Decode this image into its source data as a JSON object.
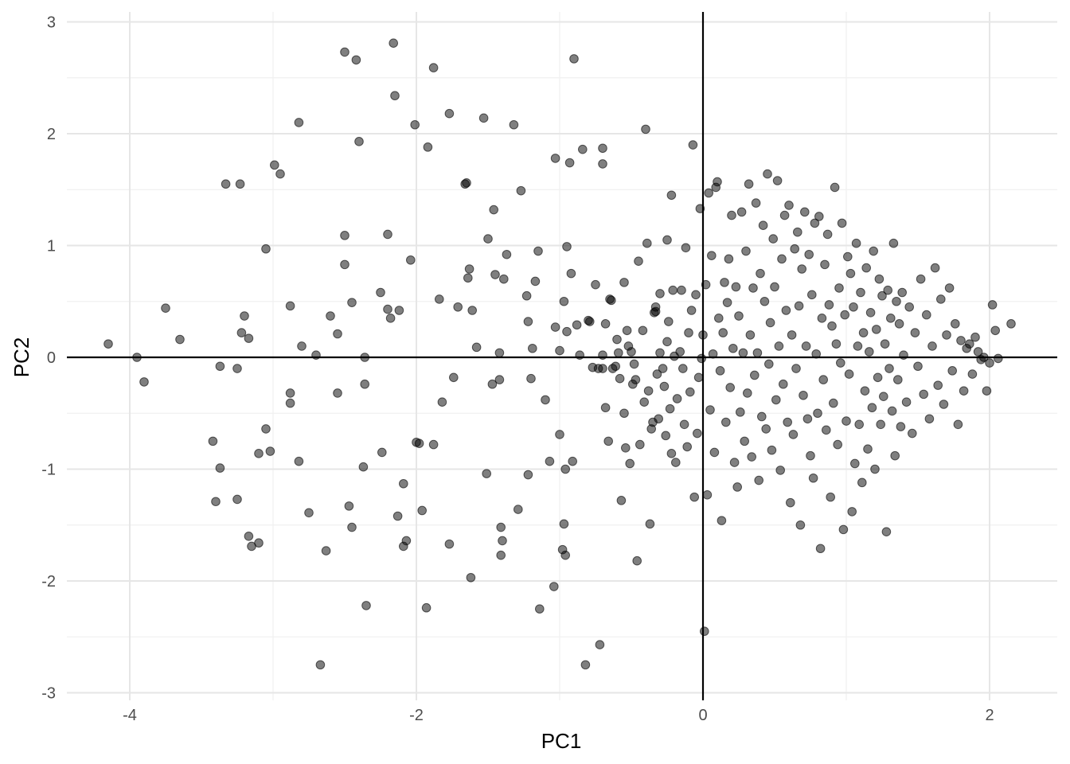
{
  "chart_data": {
    "type": "scatter",
    "title": "",
    "xlabel": "PC1",
    "ylabel": "PC2",
    "xlim": [
      -4.4,
      2.5
    ],
    "ylim": [
      -3,
      3
    ],
    "x_ticks": [
      -4,
      -2,
      0,
      2
    ],
    "y_ticks": [
      -3,
      -2,
      -1,
      0,
      1,
      2,
      3
    ],
    "x_tick_labels": [
      "-4",
      "-2",
      "0",
      "2"
    ],
    "y_tick_labels": [
      "-3",
      "-2",
      "-1",
      "0",
      "1",
      "2",
      "3"
    ],
    "grid": true,
    "reference_lines": {
      "x": 0,
      "y": 0
    },
    "legend": "none",
    "colors": {
      "point": "#000000",
      "grid": "#e6e6e6"
    },
    "points": [
      [
        -4.15,
        0.12
      ],
      [
        -3.95,
        0.0
      ],
      [
        -3.9,
        -0.22
      ],
      [
        -3.75,
        0.44
      ],
      [
        -3.65,
        0.16
      ],
      [
        -3.42,
        -0.75
      ],
      [
        -3.4,
        -1.29
      ],
      [
        -3.37,
        -0.99
      ],
      [
        -3.37,
        -0.08
      ],
      [
        -3.33,
        1.55
      ],
      [
        -3.25,
        -1.27
      ],
      [
        -3.25,
        -0.1
      ],
      [
        -3.23,
        1.55
      ],
      [
        -3.22,
        0.22
      ],
      [
        -3.2,
        0.37
      ],
      [
        -3.17,
        0.17
      ],
      [
        -3.17,
        -1.6
      ],
      [
        -3.15,
        -1.69
      ],
      [
        -3.1,
        -1.66
      ],
      [
        -3.1,
        -0.86
      ],
      [
        -3.05,
        0.97
      ],
      [
        -3.05,
        -0.64
      ],
      [
        -3.02,
        -0.84
      ],
      [
        -2.99,
        1.72
      ],
      [
        -2.95,
        1.64
      ],
      [
        -2.88,
        -0.32
      ],
      [
        -2.88,
        -0.41
      ],
      [
        -2.88,
        0.46
      ],
      [
        -2.82,
        2.1
      ],
      [
        -2.82,
        -0.93
      ],
      [
        -2.8,
        0.1
      ],
      [
        -2.75,
        -1.39
      ],
      [
        -2.7,
        0.02
      ],
      [
        -2.67,
        -2.75
      ],
      [
        -2.63,
        -1.73
      ],
      [
        -2.6,
        0.37
      ],
      [
        -2.55,
        0.21
      ],
      [
        -2.55,
        -0.32
      ],
      [
        -2.5,
        2.73
      ],
      [
        -2.5,
        0.83
      ],
      [
        -2.5,
        1.09
      ],
      [
        -2.47,
        -1.33
      ],
      [
        -2.45,
        0.49
      ],
      [
        -2.45,
        -1.52
      ],
      [
        -2.42,
        2.66
      ],
      [
        -2.4,
        1.93
      ],
      [
        -2.37,
        -0.98
      ],
      [
        -2.36,
        0.0
      ],
      [
        -2.36,
        -0.24
      ],
      [
        -2.35,
        -2.22
      ],
      [
        -2.25,
        0.58
      ],
      [
        -2.24,
        -0.85
      ],
      [
        -2.2,
        1.1
      ],
      [
        -2.2,
        0.43
      ],
      [
        -2.18,
        0.35
      ],
      [
        -2.16,
        2.81
      ],
      [
        -2.15,
        2.34
      ],
      [
        -2.13,
        -1.42
      ],
      [
        -2.12,
        0.42
      ],
      [
        -2.09,
        -1.13
      ],
      [
        -2.09,
        -1.69
      ],
      [
        -2.07,
        -1.64
      ],
      [
        -2.04,
        0.87
      ],
      [
        -2.01,
        2.08
      ],
      [
        -2.0,
        -0.76
      ],
      [
        -1.98,
        -0.77
      ],
      [
        -1.96,
        -1.37
      ],
      [
        -1.93,
        -2.24
      ],
      [
        -1.92,
        1.88
      ],
      [
        -1.88,
        2.59
      ],
      [
        -1.88,
        -0.78
      ],
      [
        -1.84,
        0.52
      ],
      [
        -1.82,
        -0.4
      ],
      [
        -1.77,
        2.18
      ],
      [
        -1.77,
        -1.67
      ],
      [
        -1.74,
        -0.18
      ],
      [
        -1.71,
        0.45
      ],
      [
        -1.66,
        1.55
      ],
      [
        -1.65,
        1.56
      ],
      [
        -1.64,
        0.71
      ],
      [
        -1.63,
        0.79
      ],
      [
        -1.62,
        -1.97
      ],
      [
        -1.61,
        0.42
      ],
      [
        -1.58,
        0.09
      ],
      [
        -1.53,
        2.14
      ],
      [
        -1.51,
        -1.04
      ],
      [
        -1.5,
        1.06
      ],
      [
        -1.47,
        -0.24
      ],
      [
        -1.46,
        1.32
      ],
      [
        -1.45,
        0.74
      ],
      [
        -1.42,
        0.04
      ],
      [
        -1.42,
        -0.2
      ],
      [
        -1.41,
        -1.52
      ],
      [
        -1.41,
        -1.77
      ],
      [
        -1.4,
        -1.64
      ],
      [
        -1.39,
        0.7
      ],
      [
        -1.37,
        0.92
      ],
      [
        -1.32,
        2.08
      ],
      [
        -1.29,
        -1.36
      ],
      [
        -1.27,
        1.49
      ],
      [
        -1.23,
        0.55
      ],
      [
        -1.22,
        0.32
      ],
      [
        -1.22,
        -1.05
      ],
      [
        -1.2,
        -0.19
      ],
      [
        -1.19,
        0.08
      ],
      [
        -1.17,
        0.68
      ],
      [
        -1.15,
        0.95
      ],
      [
        -1.14,
        -2.25
      ],
      [
        -1.1,
        -0.38
      ],
      [
        -1.07,
        -0.93
      ],
      [
        -1.04,
        -2.05
      ],
      [
        -1.03,
        1.78
      ],
      [
        -1.03,
        0.27
      ],
      [
        -1.0,
        0.06
      ],
      [
        -1.0,
        -0.69
      ],
      [
        -0.98,
        -1.72
      ],
      [
        -0.97,
        0.5
      ],
      [
        -0.97,
        -1.49
      ],
      [
        -0.96,
        -1.77
      ],
      [
        -0.96,
        -1.0
      ],
      [
        -0.95,
        0.99
      ],
      [
        -0.95,
        0.23
      ],
      [
        -0.93,
        1.74
      ],
      [
        -0.92,
        0.75
      ],
      [
        -0.91,
        -0.93
      ],
      [
        -0.9,
        2.67
      ],
      [
        -0.88,
        0.29
      ],
      [
        -0.86,
        0.02
      ],
      [
        -0.84,
        1.86
      ],
      [
        -0.82,
        -2.75
      ],
      [
        -0.8,
        0.33
      ],
      [
        -0.79,
        0.32
      ],
      [
        -0.77,
        -0.09
      ],
      [
        -0.75,
        0.65
      ],
      [
        -0.73,
        -0.1
      ],
      [
        -0.72,
        -2.57
      ],
      [
        -0.7,
        1.73
      ],
      [
        -0.7,
        1.87
      ],
      [
        -0.7,
        -0.1
      ],
      [
        -0.7,
        0.02
      ],
      [
        -0.68,
        0.3
      ],
      [
        -0.68,
        -0.45
      ],
      [
        -0.66,
        -0.75
      ],
      [
        -0.65,
        0.52
      ],
      [
        -0.64,
        0.51
      ],
      [
        -0.63,
        -0.1
      ],
      [
        -0.61,
        -0.08
      ],
      [
        -0.6,
        0.16
      ],
      [
        -0.59,
        0.04
      ],
      [
        -0.58,
        -0.19
      ],
      [
        -0.57,
        -1.28
      ],
      [
        -0.55,
        -0.5
      ],
      [
        -0.55,
        0.67
      ],
      [
        -0.54,
        -0.81
      ],
      [
        -0.53,
        0.24
      ],
      [
        -0.52,
        0.1
      ],
      [
        -0.51,
        -0.95
      ],
      [
        -0.5,
        0.05
      ],
      [
        -0.49,
        -0.24
      ],
      [
        -0.48,
        -0.06
      ],
      [
        -0.47,
        -0.2
      ],
      [
        -0.46,
        -1.82
      ],
      [
        -0.45,
        0.86
      ],
      [
        -0.44,
        -0.78
      ],
      [
        -0.42,
        0.24
      ],
      [
        -0.41,
        -0.4
      ],
      [
        -0.4,
        2.04
      ],
      [
        -0.39,
        1.02
      ],
      [
        -0.38,
        -0.3
      ],
      [
        -0.37,
        -1.49
      ],
      [
        -0.36,
        -0.64
      ],
      [
        -0.35,
        -0.58
      ],
      [
        -0.34,
        0.4
      ],
      [
        -0.33,
        0.41
      ],
      [
        -0.33,
        0.45
      ],
      [
        -0.32,
        -0.15
      ],
      [
        -0.31,
        -0.55
      ],
      [
        -0.3,
        0.04
      ],
      [
        -0.3,
        0.57
      ],
      [
        -0.28,
        -0.1
      ],
      [
        -0.27,
        -0.26
      ],
      [
        -0.26,
        -0.7
      ],
      [
        -0.25,
        0.14
      ],
      [
        -0.25,
        1.05
      ],
      [
        -0.24,
        0.32
      ],
      [
        -0.23,
        -0.46
      ],
      [
        -0.22,
        1.45
      ],
      [
        -0.22,
        -0.86
      ],
      [
        -0.21,
        0.6
      ],
      [
        -0.2,
        0.01
      ],
      [
        -0.19,
        -0.94
      ],
      [
        -0.18,
        -0.37
      ],
      [
        -0.16,
        0.05
      ],
      [
        -0.15,
        0.6
      ],
      [
        -0.14,
        -0.1
      ],
      [
        -0.13,
        -0.6
      ],
      [
        -0.12,
        0.98
      ],
      [
        -0.11,
        -0.8
      ],
      [
        -0.1,
        0.22
      ],
      [
        -0.09,
        -0.31
      ],
      [
        -0.08,
        0.42
      ],
      [
        -0.07,
        1.9
      ],
      [
        -0.06,
        -1.25
      ],
      [
        -0.05,
        0.56
      ],
      [
        -0.04,
        -0.68
      ],
      [
        -0.03,
        -0.18
      ],
      [
        -0.02,
        1.33
      ],
      [
        -0.01,
        -0.01
      ],
      [
        0.0,
        0.2
      ],
      [
        0.01,
        -2.45
      ],
      [
        0.02,
        0.65
      ],
      [
        0.03,
        -1.23
      ],
      [
        0.04,
        1.47
      ],
      [
        0.05,
        -0.47
      ],
      [
        0.06,
        0.91
      ],
      [
        0.07,
        0.03
      ],
      [
        0.08,
        -0.85
      ],
      [
        0.09,
        1.52
      ],
      [
        0.1,
        1.57
      ],
      [
        0.11,
        0.35
      ],
      [
        0.12,
        -0.12
      ],
      [
        0.13,
        -1.46
      ],
      [
        0.14,
        0.22
      ],
      [
        0.15,
        0.67
      ],
      [
        0.16,
        -0.58
      ],
      [
        0.17,
        0.49
      ],
      [
        0.18,
        0.88
      ],
      [
        0.19,
        -0.27
      ],
      [
        0.2,
        1.27
      ],
      [
        0.21,
        0.08
      ],
      [
        0.22,
        -0.94
      ],
      [
        0.23,
        0.63
      ],
      [
        0.24,
        -1.16
      ],
      [
        0.25,
        0.37
      ],
      [
        0.26,
        -0.49
      ],
      [
        0.27,
        1.3
      ],
      [
        0.28,
        0.04
      ],
      [
        0.29,
        -0.75
      ],
      [
        0.3,
        0.95
      ],
      [
        0.31,
        -0.32
      ],
      [
        0.32,
        1.55
      ],
      [
        0.33,
        0.2
      ],
      [
        0.34,
        -0.89
      ],
      [
        0.35,
        0.62
      ],
      [
        0.36,
        -0.16
      ],
      [
        0.37,
        1.38
      ],
      [
        0.38,
        0.04
      ],
      [
        0.39,
        -1.1
      ],
      [
        0.4,
        0.75
      ],
      [
        0.41,
        -0.53
      ],
      [
        0.42,
        1.18
      ],
      [
        0.43,
        0.5
      ],
      [
        0.44,
        -0.64
      ],
      [
        0.45,
        1.64
      ],
      [
        0.46,
        -0.06
      ],
      [
        0.47,
        0.31
      ],
      [
        0.48,
        -0.83
      ],
      [
        0.49,
        1.06
      ],
      [
        0.5,
        0.63
      ],
      [
        0.51,
        -0.38
      ],
      [
        0.52,
        1.58
      ],
      [
        0.53,
        0.1
      ],
      [
        0.54,
        -1.01
      ],
      [
        0.55,
        0.88
      ],
      [
        0.56,
        -0.24
      ],
      [
        0.57,
        1.27
      ],
      [
        0.58,
        0.42
      ],
      [
        0.59,
        -0.58
      ],
      [
        0.6,
        1.36
      ],
      [
        0.61,
        -1.3
      ],
      [
        0.62,
        0.2
      ],
      [
        0.63,
        -0.69
      ],
      [
        0.64,
        0.97
      ],
      [
        0.65,
        -0.1
      ],
      [
        0.66,
        1.12
      ],
      [
        0.67,
        0.46
      ],
      [
        0.68,
        -1.5
      ],
      [
        0.69,
        0.79
      ],
      [
        0.7,
        -0.34
      ],
      [
        0.71,
        1.3
      ],
      [
        0.72,
        0.1
      ],
      [
        0.73,
        -0.55
      ],
      [
        0.74,
        0.92
      ],
      [
        0.75,
        -0.88
      ],
      [
        0.76,
        0.56
      ],
      [
        0.77,
        -1.08
      ],
      [
        0.78,
        1.2
      ],
      [
        0.79,
        0.03
      ],
      [
        0.8,
        -0.5
      ],
      [
        0.81,
        1.26
      ],
      [
        0.82,
        -1.71
      ],
      [
        0.83,
        0.35
      ],
      [
        0.84,
        -0.2
      ],
      [
        0.85,
        0.83
      ],
      [
        0.86,
        -0.65
      ],
      [
        0.87,
        1.1
      ],
      [
        0.88,
        0.47
      ],
      [
        0.89,
        -1.25
      ],
      [
        0.9,
        0.28
      ],
      [
        0.91,
        -0.41
      ],
      [
        0.92,
        1.52
      ],
      [
        0.93,
        0.12
      ],
      [
        0.94,
        -0.78
      ],
      [
        0.95,
        0.62
      ],
      [
        0.96,
        -0.05
      ],
      [
        0.97,
        1.2
      ],
      [
        0.98,
        -1.54
      ],
      [
        0.99,
        0.38
      ],
      [
        1.0,
        -0.57
      ],
      [
        1.01,
        0.9
      ],
      [
        1.02,
        -0.15
      ],
      [
        1.03,
        0.75
      ],
      [
        1.04,
        -1.38
      ],
      [
        1.05,
        0.45
      ],
      [
        1.06,
        -0.95
      ],
      [
        1.07,
        1.02
      ],
      [
        1.08,
        0.1
      ],
      [
        1.09,
        -0.6
      ],
      [
        1.1,
        0.58
      ],
      [
        1.11,
        -1.12
      ],
      [
        1.12,
        0.22
      ],
      [
        1.13,
        -0.3
      ],
      [
        1.14,
        0.8
      ],
      [
        1.15,
        -0.82
      ],
      [
        1.16,
        0.05
      ],
      [
        1.17,
        0.4
      ],
      [
        1.18,
        -0.45
      ],
      [
        1.19,
        0.95
      ],
      [
        1.2,
        -1.0
      ],
      [
        1.21,
        0.25
      ],
      [
        1.22,
        -0.18
      ],
      [
        1.23,
        0.7
      ],
      [
        1.24,
        -0.6
      ],
      [
        1.25,
        0.55
      ],
      [
        1.26,
        -0.35
      ],
      [
        1.27,
        0.12
      ],
      [
        1.28,
        -1.56
      ],
      [
        1.29,
        0.6
      ],
      [
        1.3,
        -0.1
      ],
      [
        1.31,
        0.35
      ],
      [
        1.32,
        -0.48
      ],
      [
        1.33,
        1.02
      ],
      [
        1.34,
        -0.88
      ],
      [
        1.35,
        0.5
      ],
      [
        1.36,
        -0.2
      ],
      [
        1.37,
        0.3
      ],
      [
        1.38,
        -0.62
      ],
      [
        1.39,
        0.58
      ],
      [
        1.4,
        0.02
      ],
      [
        1.42,
        -0.4
      ],
      [
        1.44,
        0.45
      ],
      [
        1.46,
        -0.68
      ],
      [
        1.48,
        0.22
      ],
      [
        1.5,
        -0.08
      ],
      [
        1.52,
        0.7
      ],
      [
        1.54,
        -0.33
      ],
      [
        1.56,
        0.38
      ],
      [
        1.58,
        -0.55
      ],
      [
        1.6,
        0.1
      ],
      [
        1.62,
        0.8
      ],
      [
        1.64,
        -0.25
      ],
      [
        1.66,
        0.52
      ],
      [
        1.68,
        -0.42
      ],
      [
        1.7,
        0.2
      ],
      [
        1.72,
        0.62
      ],
      [
        1.74,
        -0.12
      ],
      [
        1.76,
        0.3
      ],
      [
        1.78,
        -0.6
      ],
      [
        1.8,
        0.15
      ],
      [
        1.82,
        -0.3
      ],
      [
        1.84,
        0.08
      ],
      [
        1.86,
        0.12
      ],
      [
        1.88,
        -0.15
      ],
      [
        1.9,
        0.18
      ],
      [
        1.92,
        0.05
      ],
      [
        1.94,
        -0.02
      ],
      [
        1.96,
        0.0
      ],
      [
        1.98,
        -0.3
      ],
      [
        2.0,
        -0.05
      ],
      [
        2.02,
        0.47
      ],
      [
        2.04,
        0.24
      ],
      [
        2.06,
        -0.01
      ],
      [
        2.15,
        0.3
      ]
    ]
  }
}
